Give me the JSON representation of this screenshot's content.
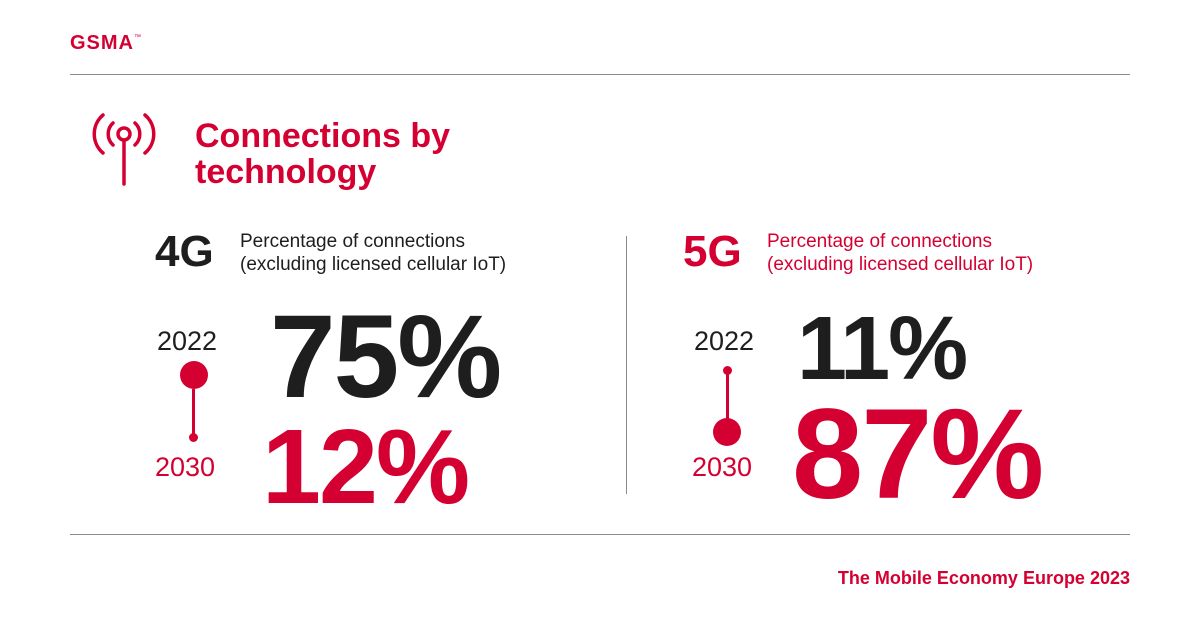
{
  "brand": {
    "logo_text": "GSMA",
    "logo_mark": "™",
    "color": "#d50032"
  },
  "title": {
    "line1": "Connections by",
    "line2": "technology"
  },
  "panels": [
    {
      "tech": "4G",
      "description_line1": "Percentage of connections",
      "description_line2": "(excluding licensed cellular IoT)",
      "year_start": "2022",
      "value_start": "75%",
      "year_end": "2030",
      "value_end": "12%"
    },
    {
      "tech": "5G",
      "description_line1": "Percentage of connections",
      "description_line2": "(excluding licensed cellular IoT)",
      "year_start": "2022",
      "value_start": "11%",
      "year_end": "2030",
      "value_end": "87%"
    }
  ],
  "footer": {
    "text": "The Mobile Economy Europe 2023"
  },
  "icons": {
    "title_icon": "antenna-icon"
  },
  "colors": {
    "accent": "#d50032",
    "text": "#1e1e1e",
    "rule": "#8c8c8c"
  }
}
